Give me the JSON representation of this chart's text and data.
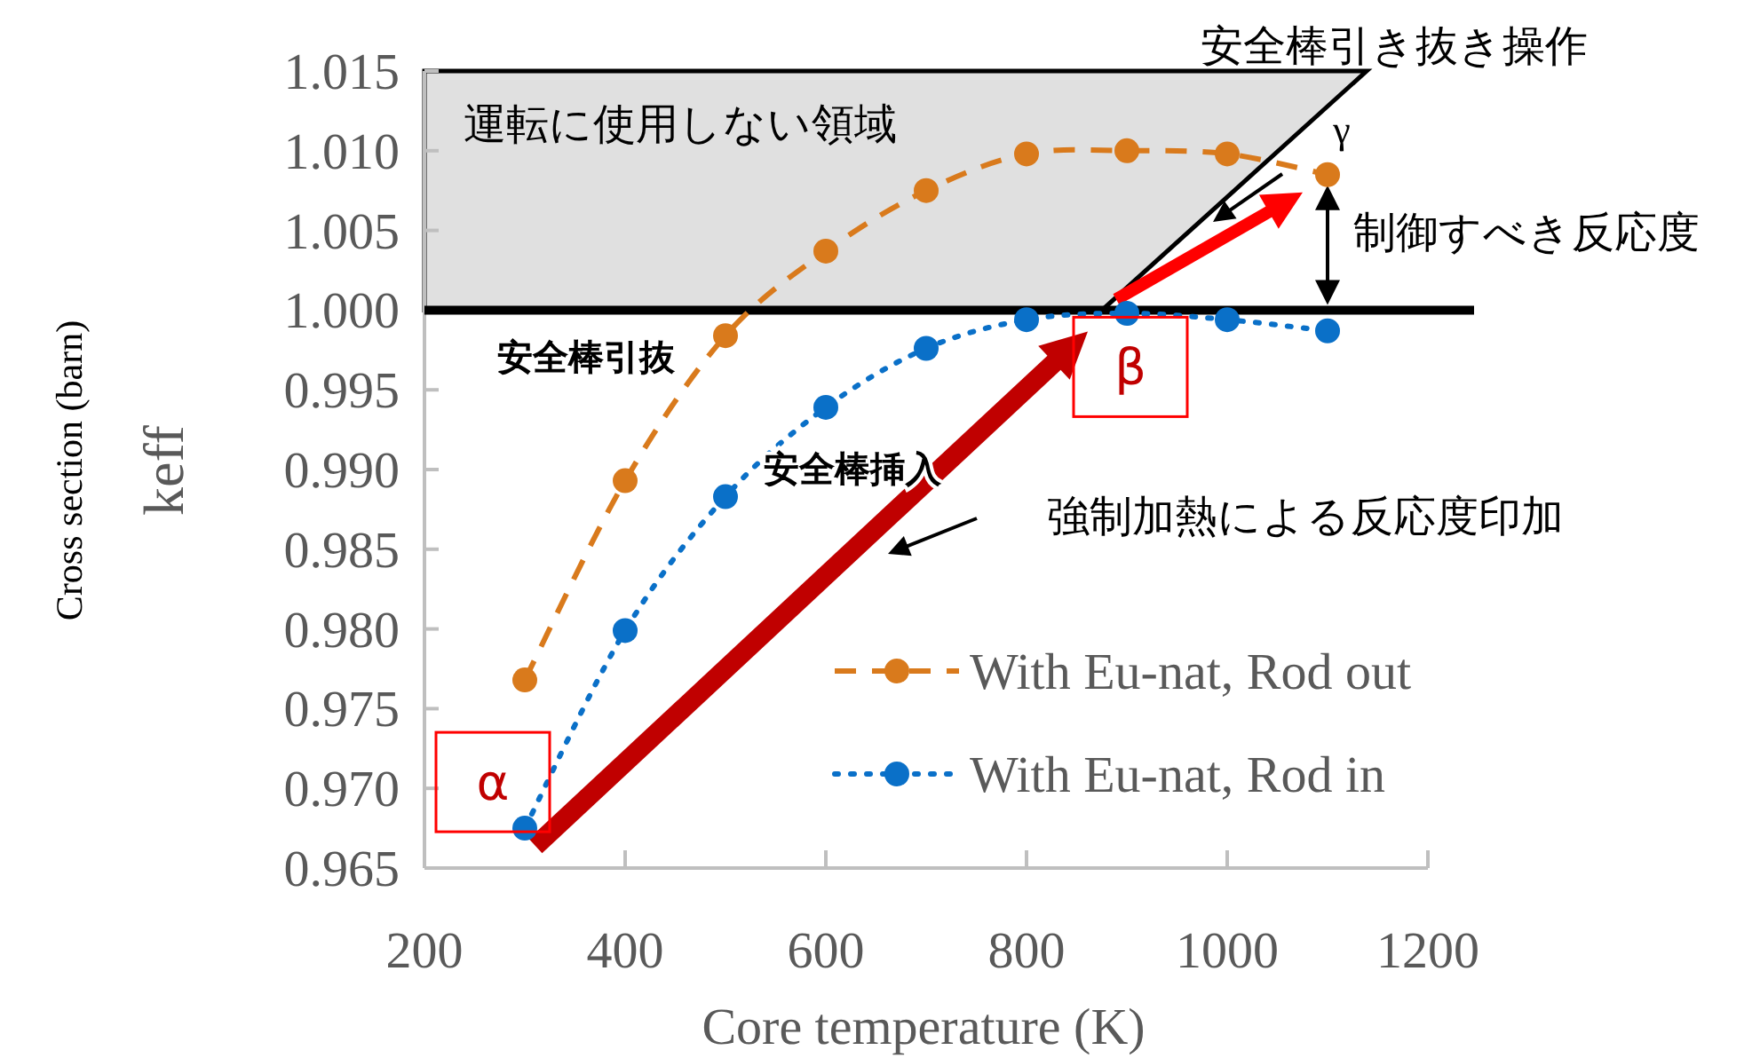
{
  "chart_data": {
    "type": "line",
    "xlabel": "Core temperature (K)",
    "ylabel": "keff",
    "x": [
      300,
      400,
      500,
      600,
      700,
      800,
      900,
      1000,
      1100
    ],
    "series": [
      {
        "name": "With Eu-nat, Rod out",
        "color": "#d97a1c",
        "line_style": "dashed",
        "values": [
          0.9768,
          0.9893,
          0.9984,
          1.0037,
          1.0075,
          1.0098,
          1.01,
          1.0098,
          1.0085
        ]
      },
      {
        "name": "With Eu-nat, Rod in",
        "color": "#0a70c8",
        "line_style": "dotted",
        "values": [
          0.9675,
          0.9799,
          0.9883,
          0.9939,
          0.9976,
          0.9994,
          0.9998,
          0.9994,
          0.9987
        ]
      }
    ],
    "marker": "circle",
    "xlim": [
      200,
      1200
    ],
    "xticks": [
      200,
      400,
      600,
      800,
      1000,
      1200
    ],
    "ylim": [
      0.965,
      1.015
    ],
    "yticks": [
      {
        "value": 0.965,
        "label": "0.965"
      },
      {
        "value": 0.97,
        "label": "0.970"
      },
      {
        "value": 0.975,
        "label": "0.975"
      },
      {
        "value": 0.98,
        "label": "0.980"
      },
      {
        "value": 0.985,
        "label": "0.985"
      },
      {
        "value": 0.99,
        "label": "0.990"
      },
      {
        "value": 0.995,
        "label": "0.995"
      },
      {
        "value": 1.0,
        "label": "1.000"
      },
      {
        "value": 1.005,
        "label": "1.005"
      },
      {
        "value": 1.01,
        "label": "1.010"
      },
      {
        "value": 1.015,
        "label": "1.015"
      }
    ],
    "grid": false,
    "legend": "bottom right",
    "bands": [
      {
        "axis": "y",
        "from": 1.0,
        "to": 1.015,
        "label": "運転に使用しない領域",
        "color": "#e0e0e0"
      }
    ],
    "ref_lines": [
      {
        "axis": "y",
        "value": 1.0,
        "color": "#000000"
      }
    ],
    "annotations": [
      "Cross section (barn)",
      {
        "text": "α",
        "x": 300,
        "y": 0.9675
      },
      {
        "text": "β",
        "x": 900,
        "y": 1.0
      },
      {
        "text": "γ",
        "x": 1100,
        "y": 1.0085
      },
      "安全棒引抜",
      "安全棒挿入",
      "強制加熱による反応度印加",
      "制御すべき反応度",
      "安全棒引き抜き操作"
    ]
  }
}
